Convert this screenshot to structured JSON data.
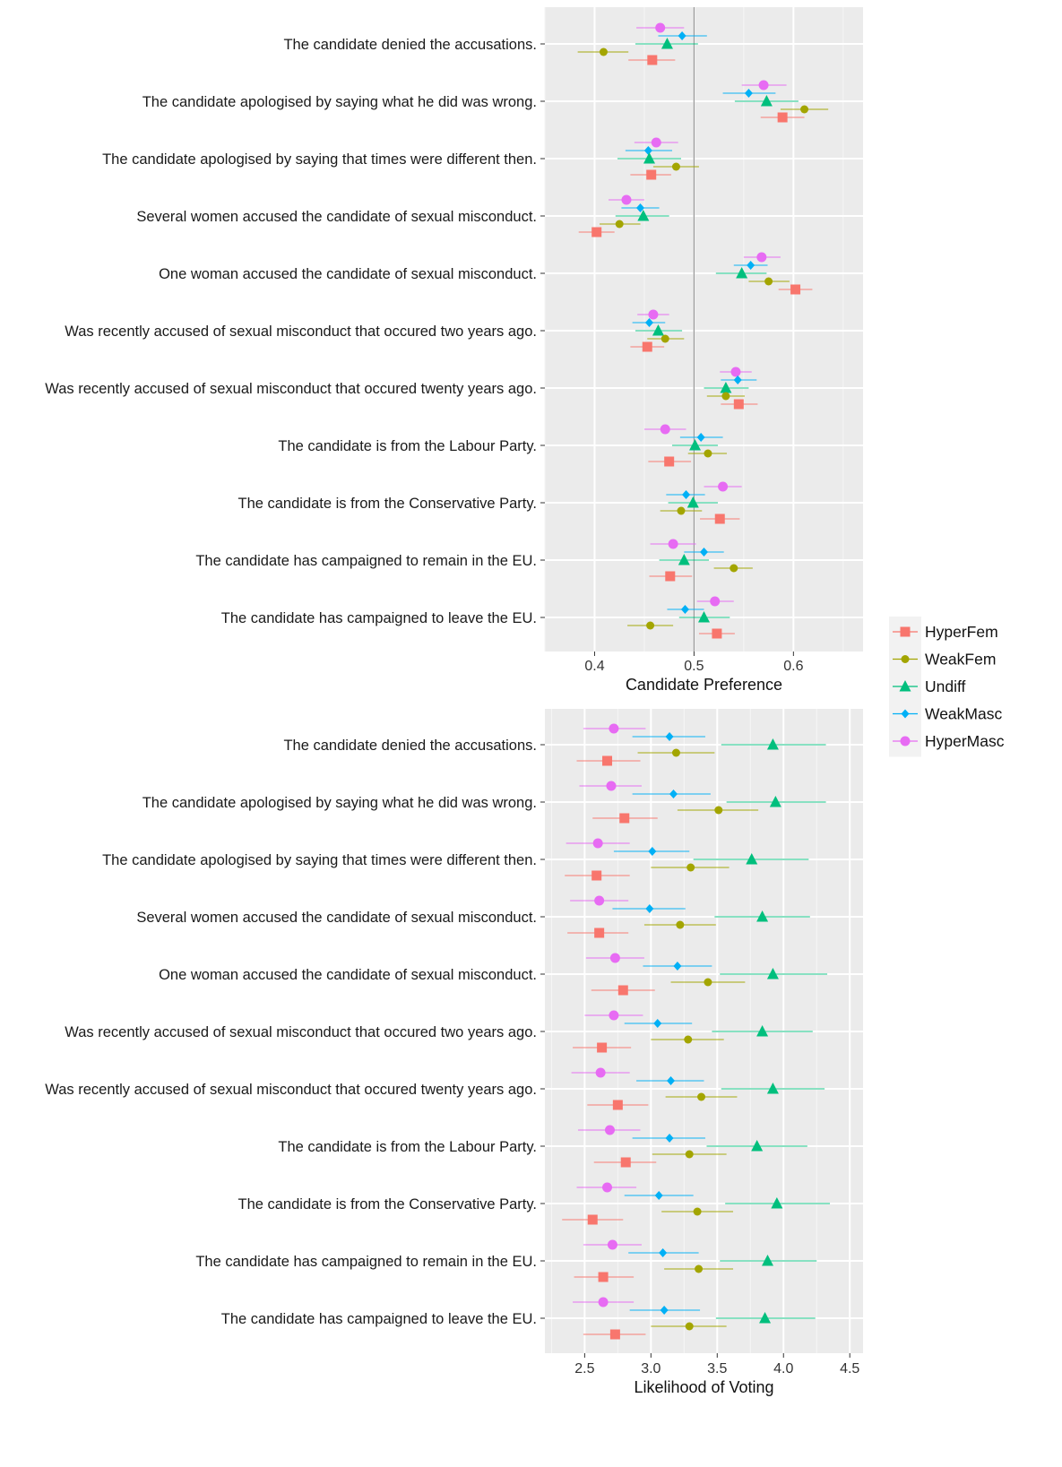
{
  "legend": {
    "items": [
      {
        "name": "HyperFem",
        "color": "#F8766D",
        "shape": "square"
      },
      {
        "name": "WeakFem",
        "color": "#A3A500",
        "shape": "circle-olive"
      },
      {
        "name": "Undiff",
        "color": "#00BF7D",
        "shape": "triangle"
      },
      {
        "name": "WeakMasc",
        "color": "#00B0F6",
        "shape": "diamond"
      },
      {
        "name": "HyperMasc",
        "color": "#E76BF3",
        "shape": "circle"
      }
    ]
  },
  "chart_data": [
    {
      "type": "scatter",
      "subtype": "dot-whisker (point estimates with confidence intervals)",
      "title": "",
      "xlabel": "Candidate Preference",
      "ylabel": "",
      "xlim": [
        0.35,
        0.67
      ],
      "x_ticks": [
        0.4,
        0.5,
        0.6
      ],
      "x_tick_labels": [
        "0.4",
        "0.5",
        "0.6"
      ],
      "reference_line": 0.5,
      "grid": true,
      "legend_position": "right",
      "categories": [
        "The candidate denied the accusations.",
        "The candidate apologised by saying what he did was wrong.",
        "The candidate apologised by saying that times were different then.",
        "Several women accused the candidate of sexual misconduct.",
        "One woman accused the candidate of sexual misconduct.",
        "Was recently accused of sexual misconduct that occured two years ago.",
        "Was recently accused of sexual misconduct that occured twenty years ago.",
        "The candidate is from the Labour Party.",
        "The candidate is from the Conservative Party.",
        "The candidate has campaigned to remain in the EU.",
        "The candidate has campaigned to leave the EU."
      ],
      "series": [
        {
          "name": "HyperMasc",
          "values": [
            0.466,
            0.57,
            0.462,
            0.432,
            0.568,
            0.459,
            0.542,
            0.471,
            0.529,
            0.479,
            0.521
          ],
          "lower": [
            0.442,
            0.548,
            0.44,
            0.414,
            0.55,
            0.443,
            0.526,
            0.45,
            0.51,
            0.456,
            0.503
          ],
          "upper": [
            0.49,
            0.593,
            0.484,
            0.45,
            0.587,
            0.475,
            0.558,
            0.492,
            0.548,
            0.502,
            0.54
          ]
        },
        {
          "name": "WeakMasc",
          "values": [
            0.488,
            0.555,
            0.454,
            0.446,
            0.557,
            0.455,
            0.544,
            0.507,
            0.492,
            0.51,
            0.491
          ],
          "lower": [
            0.464,
            0.529,
            0.431,
            0.427,
            0.54,
            0.438,
            0.527,
            0.486,
            0.472,
            0.49,
            0.473
          ],
          "upper": [
            0.513,
            0.582,
            0.478,
            0.465,
            0.574,
            0.471,
            0.563,
            0.529,
            0.511,
            0.53,
            0.51
          ]
        },
        {
          "name": "Undiff",
          "values": [
            0.473,
            0.573,
            0.455,
            0.449,
            0.548,
            0.464,
            0.532,
            0.501,
            0.499,
            0.49,
            0.51
          ],
          "lower": [
            0.441,
            0.541,
            0.423,
            0.421,
            0.522,
            0.441,
            0.51,
            0.478,
            0.474,
            0.465,
            0.485
          ],
          "upper": [
            0.504,
            0.605,
            0.487,
            0.475,
            0.573,
            0.488,
            0.555,
            0.524,
            0.524,
            0.515,
            0.536
          ]
        },
        {
          "name": "WeakFem",
          "values": [
            0.409,
            0.611,
            0.482,
            0.425,
            0.575,
            0.471,
            0.532,
            0.514,
            0.487,
            0.54,
            0.456
          ],
          "lower": [
            0.383,
            0.587,
            0.459,
            0.405,
            0.555,
            0.453,
            0.513,
            0.494,
            0.466,
            0.52,
            0.433
          ],
          "upper": [
            0.434,
            0.635,
            0.505,
            0.446,
            0.596,
            0.49,
            0.551,
            0.533,
            0.508,
            0.559,
            0.479
          ]
        },
        {
          "name": "HyperFem",
          "values": [
            0.458,
            0.589,
            0.457,
            0.402,
            0.602,
            0.453,
            0.545,
            0.475,
            0.526,
            0.476,
            0.523
          ],
          "lower": [
            0.434,
            0.567,
            0.436,
            0.384,
            0.585,
            0.436,
            0.527,
            0.454,
            0.506,
            0.455,
            0.505
          ],
          "upper": [
            0.481,
            0.611,
            0.477,
            0.42,
            0.619,
            0.47,
            0.564,
            0.497,
            0.546,
            0.498,
            0.541
          ]
        }
      ]
    },
    {
      "type": "scatter",
      "subtype": "dot-whisker (point estimates with confidence intervals)",
      "title": "",
      "xlabel": "Likelihood of Voting",
      "ylabel": "",
      "xlim": [
        2.2,
        4.6
      ],
      "x_ticks": [
        2.5,
        3.0,
        3.5,
        4.0,
        4.5
      ],
      "x_tick_labels": [
        "2.5",
        "3.0",
        "3.5",
        "4.0",
        "4.5"
      ],
      "grid": true,
      "legend_position": "right",
      "categories": [
        "The candidate denied the accusations.",
        "The candidate apologised by saying what he did was wrong.",
        "The candidate apologised by saying that times were different then.",
        "Several women accused the candidate of sexual misconduct.",
        "One woman accused the candidate of sexual misconduct.",
        "Was recently accused of sexual misconduct that occured two years ago.",
        "Was recently accused of sexual misconduct that occured twenty years ago.",
        "The candidate is from the Labour Party.",
        "The candidate is from the Conservative Party.",
        "The candidate has campaigned to remain in the EU.",
        "The candidate has campaigned to leave the EU."
      ],
      "series": [
        {
          "name": "HyperMasc",
          "values": [
            2.72,
            2.7,
            2.6,
            2.61,
            2.73,
            2.72,
            2.62,
            2.69,
            2.67,
            2.71,
            2.64
          ],
          "lower": [
            2.49,
            2.46,
            2.36,
            2.39,
            2.51,
            2.5,
            2.4,
            2.45,
            2.44,
            2.49,
            2.41
          ],
          "upper": [
            2.96,
            2.93,
            2.84,
            2.83,
            2.95,
            2.94,
            2.84,
            2.92,
            2.89,
            2.93,
            2.87
          ]
        },
        {
          "name": "WeakMasc",
          "values": [
            3.14,
            3.17,
            3.01,
            2.99,
            3.2,
            3.05,
            3.15,
            3.14,
            3.06,
            3.09,
            3.1
          ],
          "lower": [
            2.86,
            2.86,
            2.72,
            2.71,
            2.94,
            2.8,
            2.89,
            2.86,
            2.8,
            2.83,
            2.84
          ],
          "upper": [
            3.41,
            3.45,
            3.29,
            3.26,
            3.46,
            3.31,
            3.4,
            3.41,
            3.32,
            3.36,
            3.37
          ]
        },
        {
          "name": "Undiff",
          "values": [
            3.92,
            3.94,
            3.76,
            3.84,
            3.92,
            3.84,
            3.92,
            3.8,
            3.95,
            3.88,
            3.86
          ],
          "lower": [
            3.53,
            3.57,
            3.32,
            3.48,
            3.52,
            3.46,
            3.53,
            3.42,
            3.56,
            3.52,
            3.49
          ],
          "upper": [
            4.32,
            4.32,
            4.19,
            4.2,
            4.33,
            4.22,
            4.31,
            4.18,
            4.35,
            4.25,
            4.24
          ]
        },
        {
          "name": "WeakFem",
          "values": [
            3.19,
            3.51,
            3.3,
            3.22,
            3.43,
            3.28,
            3.38,
            3.29,
            3.35,
            3.36,
            3.29
          ],
          "lower": [
            2.9,
            3.2,
            3.0,
            2.95,
            3.15,
            3.0,
            3.11,
            3.01,
            3.08,
            3.1,
            3.0
          ],
          "upper": [
            3.48,
            3.81,
            3.59,
            3.49,
            3.71,
            3.55,
            3.65,
            3.57,
            3.62,
            3.62,
            3.57
          ]
        },
        {
          "name": "HyperFem",
          "values": [
            2.67,
            2.8,
            2.59,
            2.61,
            2.79,
            2.63,
            2.75,
            2.81,
            2.56,
            2.64,
            2.73
          ],
          "lower": [
            2.44,
            2.56,
            2.35,
            2.37,
            2.55,
            2.41,
            2.52,
            2.57,
            2.33,
            2.42,
            2.49
          ],
          "upper": [
            2.92,
            3.05,
            2.84,
            2.83,
            3.03,
            2.85,
            2.98,
            3.04,
            2.79,
            2.87,
            2.96
          ]
        }
      ]
    }
  ]
}
